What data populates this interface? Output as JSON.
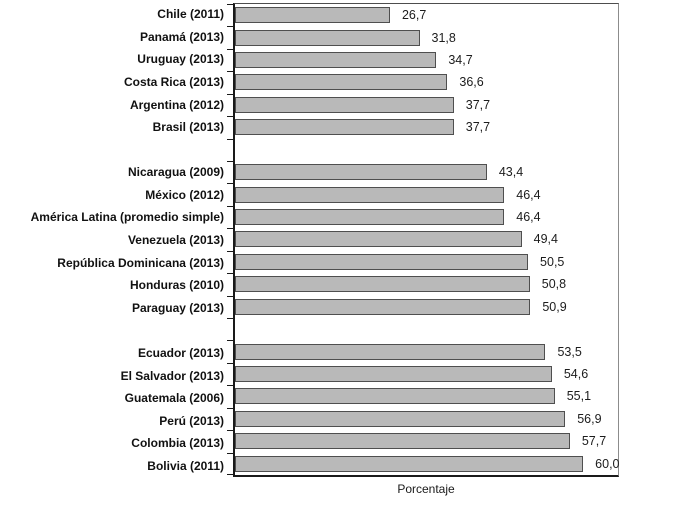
{
  "chart_data": {
    "type": "bar",
    "orientation": "horizontal",
    "xlabel": "Porcentaje",
    "xlim": [
      0,
      66
    ],
    "grid": false,
    "legend": false,
    "decimal_separator": ",",
    "colors": {
      "bar_fill": "#b9b9b9",
      "bar_border": "#4f4f4f",
      "axis": "#1a1a1a",
      "label_text": "#111111",
      "value_text": "#1c1c1c"
    },
    "categories": [
      "Chile (2011)",
      "Panamá (2013)",
      "Uruguay (2013)",
      "Costa Rica (2013)",
      "Argentina (2012)",
      "Brasil (2013)",
      "Nicaragua (2009)",
      "México (2012)",
      "América Latina (promedio simple)",
      "Venezuela (2013)",
      "República Dominicana (2013)",
      "Honduras (2010)",
      "Paraguay (2013)",
      "Ecuador (2013)",
      "El Salvador (2013)",
      "Guatemala (2006)",
      "Perú (2013)",
      "Colombia (2013)",
      "Bolivia (2011)"
    ],
    "values": [
      26.7,
      31.8,
      34.7,
      36.6,
      37.7,
      37.7,
      43.4,
      46.4,
      46.4,
      49.4,
      50.5,
      50.8,
      50.9,
      53.5,
      54.6,
      55.1,
      56.9,
      57.7,
      60.0
    ],
    "rows": [
      {
        "label": "Chile (2011)",
        "value": 26.7,
        "display": "26,7"
      },
      {
        "label": "Panamá (2013)",
        "value": 31.8,
        "display": "31,8"
      },
      {
        "label": "Uruguay (2013)",
        "value": 34.7,
        "display": "34,7"
      },
      {
        "label": "Costa Rica (2013)",
        "value": 36.6,
        "display": "36,6"
      },
      {
        "label": "Argentina (2012)",
        "value": 37.7,
        "display": "37,7"
      },
      {
        "label": "Brasil (2013)",
        "value": 37.7,
        "display": "37,7"
      },
      {
        "gap": true
      },
      {
        "label": "Nicaragua (2009)",
        "value": 43.4,
        "display": "43,4"
      },
      {
        "label": "México (2012)",
        "value": 46.4,
        "display": "46,4"
      },
      {
        "label": "América Latina (promedio simple)",
        "value": 46.4,
        "display": "46,4"
      },
      {
        "label": "Venezuela (2013)",
        "value": 49.4,
        "display": "49,4"
      },
      {
        "label": "República Dominicana (2013)",
        "value": 50.5,
        "display": "50,5"
      },
      {
        "label": "Honduras (2010)",
        "value": 50.8,
        "display": "50,8"
      },
      {
        "label": "Paraguay (2013)",
        "value": 50.9,
        "display": "50,9"
      },
      {
        "gap": true
      },
      {
        "label": "Ecuador (2013)",
        "value": 53.5,
        "display": "53,5"
      },
      {
        "label": "El Salvador (2013)",
        "value": 54.6,
        "display": "54,6"
      },
      {
        "label": "Guatemala (2006)",
        "value": 55.1,
        "display": "55,1"
      },
      {
        "label": "Perú (2013)",
        "value": 56.9,
        "display": "56,9"
      },
      {
        "label": "Colombia (2013)",
        "value": 57.7,
        "display": "57,7"
      },
      {
        "label": "Bolivia (2011)",
        "value": 60.0,
        "display": "60,0"
      }
    ]
  }
}
